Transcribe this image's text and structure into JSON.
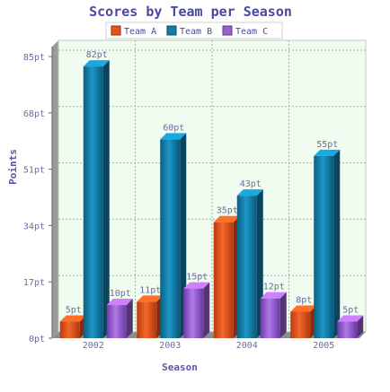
{
  "chart_data": {
    "type": "bar",
    "title": "Scores by Team per Season",
    "xlabel": "Season",
    "ylabel": "Points",
    "categories": [
      "2002",
      "2003",
      "2004",
      "2005"
    ],
    "series": [
      {
        "name": "Team A",
        "values": [
          5,
          11,
          35,
          8
        ],
        "labels": [
          "5pt",
          "11pt",
          "35pt",
          "8pt"
        ],
        "color": "#e8521b"
      },
      {
        "name": "Team B",
        "values": [
          82,
          60,
          43,
          55
        ],
        "labels": [
          "82pt",
          "60pt",
          "43pt",
          "55pt"
        ],
        "color": "#117da8"
      },
      {
        "name": "Team C",
        "values": [
          10,
          15,
          12,
          5
        ],
        "labels": [
          "10pt",
          "15pt",
          "12pt",
          "5pt"
        ],
        "color": "#9a5fd6"
      }
    ],
    "yticks": [
      0,
      17,
      34,
      51,
      68,
      85
    ],
    "ytick_labels": [
      "0pt",
      "17pt",
      "34pt",
      "51pt",
      "68pt",
      "85pt"
    ],
    "ylim": [
      0,
      85
    ],
    "grid": true,
    "legend_position": "top"
  },
  "colors": {
    "title": "#4a47a3",
    "axis_text": "#6b6b9e",
    "plot_bg": "#effcef",
    "grid": "#9bb89b"
  }
}
